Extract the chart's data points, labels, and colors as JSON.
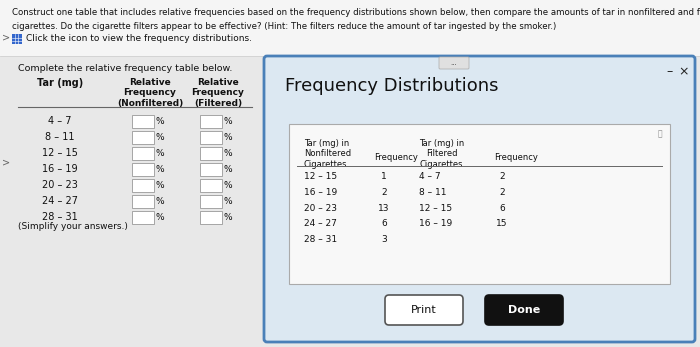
{
  "title_line1": "Construct one table that includes relative frequencies based on the frequency distributions shown below, then compare the amounts of tar in nonfiltered and filtered",
  "title_line2": "cigarettes. Do the cigarette filters appear to be effective? (Hint: The filters reduce the amount of tar ingested by the smoker.)",
  "click_text": "Click the icon to view the frequency distributions.",
  "left_table_title": "Complete the relative frequency table below.",
  "left_col0_header": "Tar (mg)",
  "left_col1_header": "Relative\nFrequency\n(Nonfiltered)",
  "left_col2_header": "Relative\nFrequency\n(Filtered)",
  "left_rows": [
    "4 – 7",
    "8 – 11",
    "12 – 15",
    "16 – 19",
    "20 – 23",
    "24 – 27",
    "28 – 31"
  ],
  "simplify_note": "(Simplify your answers.)",
  "right_title": "Frequency Distributions",
  "nonfilt_col0_header": "Tar (mg) in\nNonfiltered\nCigarettes",
  "nonfilt_col1_header": "Frequency",
  "filt_col0_header": "Tar (mg) in\nFiltered\nCigarettes",
  "filt_col1_header": "Frequency",
  "nonfilt_ranges": [
    "12 – 15",
    "16 – 19",
    "20 – 23",
    "24 – 27",
    "28 – 31"
  ],
  "nonfilt_freqs": [
    "1",
    "2",
    "13",
    "6",
    "3"
  ],
  "filt_ranges": [
    "4 – 7",
    "8 – 11",
    "12 – 15",
    "16 – 19"
  ],
  "filt_freqs": [
    "2",
    "2",
    "6",
    "15"
  ],
  "print_btn_text": "Print",
  "done_btn_text": "Done",
  "page_bg": "#e8e8e8",
  "dialog_bg": "#dce8f2",
  "dialog_border": "#4a80b8",
  "inner_box_bg": "#f0f0f0",
  "inner_box_border": "#aaaaaa",
  "left_panel_bg": "#e0e0e0"
}
